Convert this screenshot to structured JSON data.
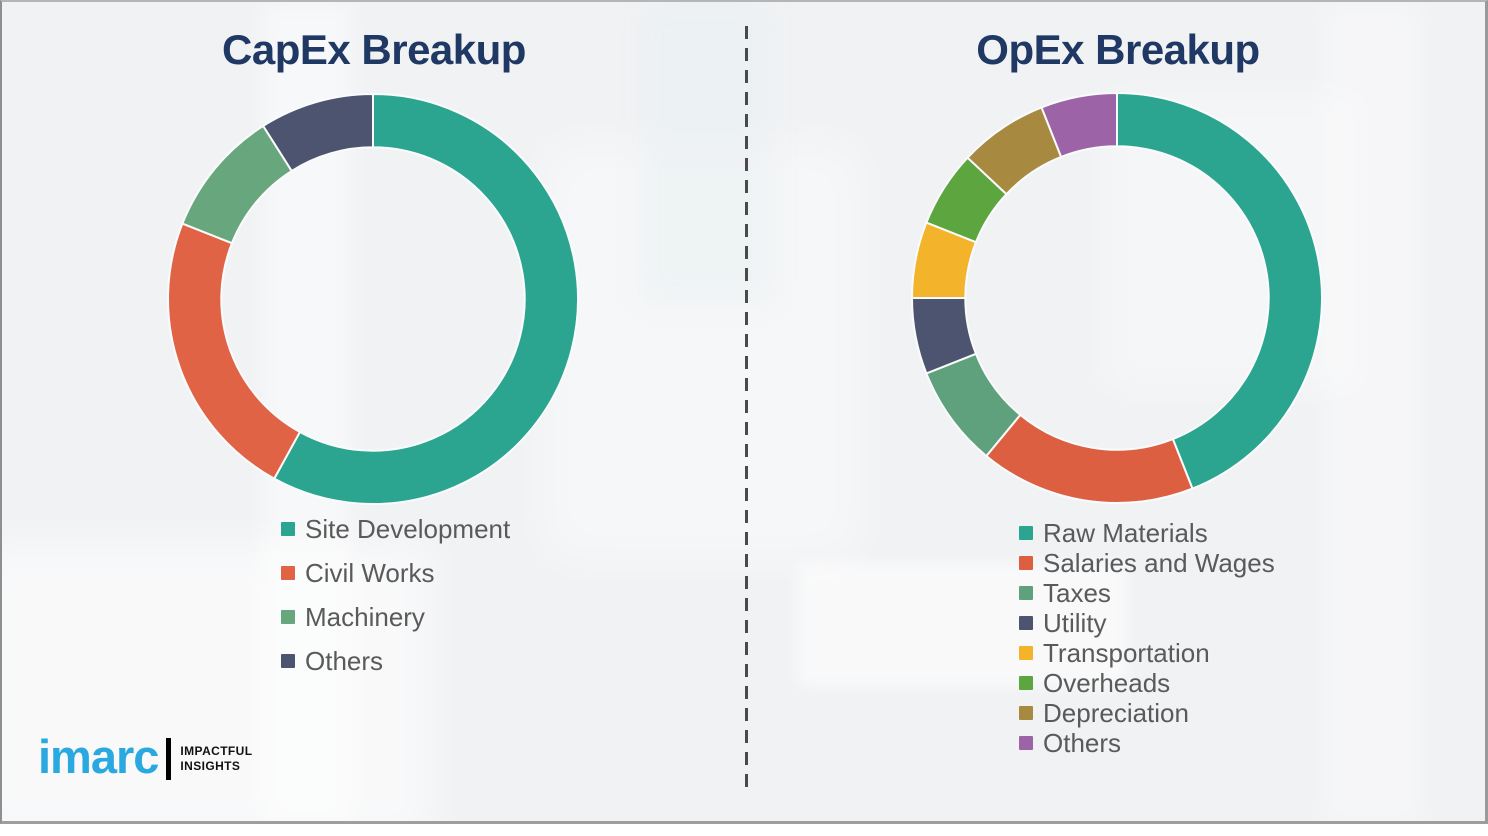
{
  "page": {
    "background_color": "#f1f2f4",
    "frame_border_color": "#8f8f8f",
    "divider_color": "#4a4a4a",
    "legend_text_color": "#5a5a5a",
    "title_color": "#1f3864"
  },
  "chart_data": [
    {
      "type": "pie",
      "subtype": "donut",
      "title": "CapEx Breakup",
      "title_color": "#1f3864",
      "categories": [
        "Site Development",
        "Civil Works",
        "Machinery",
        "Others"
      ],
      "values": [
        58,
        23,
        10,
        9
      ],
      "unit": "percent-estimated",
      "colors": [
        "#2ba58f",
        "#e06345",
        "#68a77e",
        "#4c546f"
      ],
      "start_angle_deg": 0,
      "direction": "clockwise",
      "inner_radius_ratio": 0.74,
      "legend_position": "below-left",
      "legend_text_color": "#5a5a5a",
      "data_labels": "none"
    },
    {
      "type": "pie",
      "subtype": "donut",
      "title": "OpEx Breakup",
      "title_color": "#1f3864",
      "categories": [
        "Raw Materials",
        "Salaries and Wages",
        "Taxes",
        "Utility",
        "Transportation",
        "Overheads",
        "Depreciation",
        "Others"
      ],
      "values": [
        44,
        17,
        8,
        6,
        6,
        6,
        7,
        6
      ],
      "unit": "percent-estimated",
      "colors": [
        "#2ba58f",
        "#dc5f41",
        "#5fa17c",
        "#4c546f",
        "#f3b32b",
        "#5ca53f",
        "#a78a40",
        "#9c64a6"
      ],
      "start_angle_deg": 0,
      "direction": "clockwise",
      "inner_radius_ratio": 0.74,
      "legend_position": "below-left",
      "legend_text_color": "#5a5a5a",
      "data_labels": "none"
    }
  ],
  "logo": {
    "brand": "imarc",
    "brand_color": "#2aa9e0",
    "tagline_line1": "IMPACTFUL",
    "tagline_line2": "INSIGHTS",
    "tagline_color": "#111111"
  }
}
